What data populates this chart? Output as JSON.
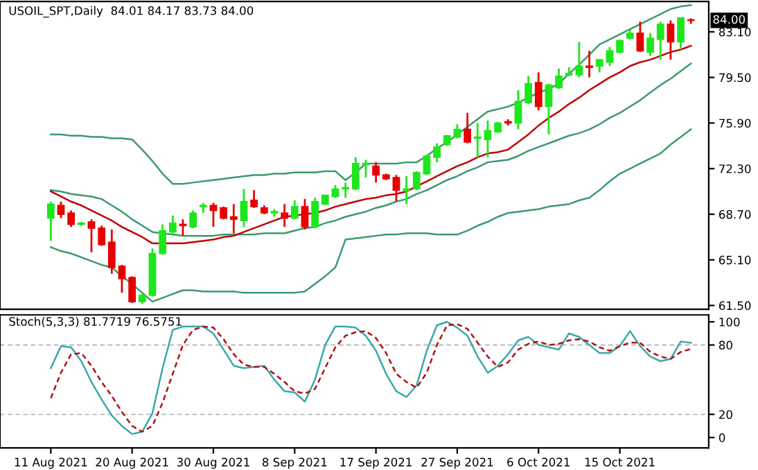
{
  "chart_data": [
    {
      "type": "candlestick",
      "title": "USOIL_SPT,Daily  84.01 84.17 83.73 84.00",
      "ohlc": [
        [
          68.4,
          69.7,
          66.6,
          69.5
        ],
        [
          69.4,
          69.7,
          68.4,
          68.7
        ],
        [
          68.8,
          69.0,
          67.7,
          67.9
        ],
        [
          67.9,
          68.1,
          67.8,
          68.0
        ],
        [
          68.1,
          68.3,
          65.7,
          67.6
        ],
        [
          67.6,
          67.8,
          66.2,
          66.3
        ],
        [
          66.5,
          67.5,
          64.0,
          64.5
        ],
        [
          64.6,
          64.7,
          62.5,
          63.6
        ],
        [
          63.7,
          63.8,
          61.7,
          61.8
        ],
        [
          61.8,
          62.4,
          61.6,
          62.3
        ],
        [
          62.3,
          66.0,
          62.2,
          65.6
        ],
        [
          65.6,
          67.9,
          65.5,
          67.4
        ],
        [
          67.3,
          68.6,
          67.2,
          68.0
        ],
        [
          67.9,
          68.3,
          67.0,
          67.8
        ],
        [
          67.7,
          69.0,
          67.6,
          68.8
        ],
        [
          69.3,
          69.6,
          68.8,
          69.4
        ],
        [
          69.4,
          69.6,
          67.7,
          69.0
        ],
        [
          69.2,
          69.3,
          68.3,
          68.4
        ],
        [
          68.5,
          69.5,
          67.2,
          68.3
        ],
        [
          68.2,
          70.7,
          67.7,
          69.7
        ],
        [
          69.8,
          70.6,
          69.2,
          69.3
        ],
        [
          69.2,
          69.4,
          68.7,
          68.8
        ],
        [
          68.8,
          69.1,
          68.5,
          68.9
        ],
        [
          68.8,
          69.5,
          67.7,
          68.4
        ],
        [
          68.4,
          69.8,
          68.3,
          69.3
        ],
        [
          69.3,
          69.9,
          67.5,
          67.7
        ],
        [
          67.7,
          70.0,
          67.6,
          69.7
        ],
        [
          69.5,
          70.2,
          69.4,
          70.2
        ],
        [
          70.1,
          71.0,
          70.0,
          70.7
        ],
        [
          70.7,
          71.2,
          70.0,
          70.8
        ],
        [
          70.7,
          73.2,
          70.6,
          72.7
        ],
        [
          72.6,
          73.0,
          71.6,
          72.7
        ],
        [
          72.5,
          72.8,
          71.2,
          71.8
        ],
        [
          71.8,
          71.9,
          71.4,
          71.5
        ],
        [
          71.6,
          71.8,
          69.7,
          70.6
        ],
        [
          70.6,
          71.7,
          69.5,
          70.7
        ],
        [
          70.7,
          72.1,
          70.6,
          72.0
        ],
        [
          71.9,
          73.4,
          71.8,
          73.3
        ],
        [
          73.2,
          74.3,
          72.8,
          74.0
        ],
        [
          74.2,
          74.9,
          74.1,
          74.9
        ],
        [
          74.8,
          75.8,
          74.7,
          75.4
        ],
        [
          75.4,
          76.7,
          74.3,
          74.4
        ],
        [
          74.7,
          75.9,
          73.2,
          74.8
        ],
        [
          74.6,
          76.1,
          73.2,
          75.3
        ],
        [
          75.2,
          76.0,
          75.1,
          75.9
        ],
        [
          76.0,
          76.2,
          75.7,
          75.9
        ],
        [
          75.9,
          78.5,
          75.4,
          77.6
        ],
        [
          77.5,
          79.6,
          77.4,
          79.0
        ],
        [
          79.1,
          79.9,
          76.9,
          77.2
        ],
        [
          77.2,
          79.0,
          75.0,
          78.9
        ],
        [
          78.7,
          80.2,
          78.6,
          79.6
        ],
        [
          79.7,
          80.3,
          79.6,
          79.8
        ],
        [
          79.7,
          82.3,
          79.5,
          80.4
        ],
        [
          80.4,
          81.6,
          79.5,
          80.3
        ],
        [
          80.4,
          80.9,
          79.9,
          80.9
        ],
        [
          80.7,
          81.9,
          80.4,
          81.6
        ],
        [
          81.5,
          82.5,
          81.4,
          82.4
        ],
        [
          82.6,
          83.3,
          82.5,
          83.0
        ],
        [
          83.0,
          83.9,
          81.5,
          81.6
        ],
        [
          81.5,
          83.0,
          81.2,
          82.6
        ],
        [
          82.5,
          83.9,
          80.9,
          83.7
        ],
        [
          83.7,
          84.0,
          80.9,
          82.3
        ],
        [
          82.3,
          84.2,
          81.7,
          84.2
        ],
        [
          84.01,
          84.17,
          83.73,
          84.0
        ]
      ],
      "colors": [
        "#1ee61e",
        "#e60000",
        "#e60000",
        "#1ee61e",
        "#e60000",
        "#e60000",
        "#e60000",
        "#e60000",
        "#e60000",
        "#1ee61e",
        "#1ee61e",
        "#1ee61e",
        "#1ee61e",
        "#e60000",
        "#1ee61e",
        "#1ee61e",
        "#e60000",
        "#e60000",
        "#e60000",
        "#1ee61e",
        "#e60000",
        "#e60000",
        "#1ee61e",
        "#e60000",
        "#1ee61e",
        "#e60000",
        "#1ee61e",
        "#1ee61e",
        "#1ee61e",
        "#1ee61e",
        "#1ee61e",
        "#1ee61e",
        "#e60000",
        "#e60000",
        "#e60000",
        "#1ee61e",
        "#1ee61e",
        "#1ee61e",
        "#1ee61e",
        "#1ee61e",
        "#1ee61e",
        "#e60000",
        "#1ee61e",
        "#1ee61e",
        "#1ee61e",
        "#e60000",
        "#1ee61e",
        "#1ee61e",
        "#e60000",
        "#1ee61e",
        "#1ee61e",
        "#1ee61e",
        "#1ee61e",
        "#e60000",
        "#1ee61e",
        "#1ee61e",
        "#1ee61e",
        "#1ee61e",
        "#e60000",
        "#1ee61e",
        "#1ee61e",
        "#e60000",
        "#1ee61e",
        "#e60000"
      ],
      "series": [
        {
          "type": "line",
          "color": "#3c9a6a",
          "values": [
            75.0,
            75.0,
            74.9,
            74.9,
            74.8,
            74.8,
            74.7,
            74.7,
            74.6,
            73.8,
            72.9,
            71.9,
            71.1,
            71.1,
            71.2,
            71.3,
            71.4,
            71.5,
            71.6,
            71.7,
            71.8,
            71.8,
            71.9,
            71.9,
            72.0,
            72.0,
            72.0,
            72.1,
            72.1,
            71.4,
            72.0,
            72.7,
            72.7,
            72.7,
            72.7,
            72.8,
            72.8,
            73.3,
            73.9,
            74.4,
            75.0,
            75.6,
            76.2,
            76.8,
            77.0,
            77.2,
            77.5,
            77.9,
            78.3,
            78.6,
            79.0,
            79.8,
            80.5,
            81.3,
            82.1,
            82.5,
            82.9,
            83.3,
            83.7,
            84.1,
            84.5,
            84.9,
            85.1,
            85.2
          ]
        },
        {
          "type": "line",
          "color": "#3c9a6a",
          "values": [
            70.6,
            70.5,
            70.3,
            70.2,
            70.1,
            69.9,
            69.4,
            68.9,
            68.3,
            67.8,
            67.3,
            67.2,
            67.1,
            67.0,
            67.0,
            67.0,
            67.0,
            67.1,
            67.1,
            67.1,
            67.1,
            67.2,
            67.2,
            67.2,
            67.4,
            67.6,
            67.7,
            68.0,
            68.2,
            68.5,
            68.7,
            68.9,
            69.2,
            69.4,
            69.7,
            69.9,
            70.3,
            70.6,
            71.0,
            71.4,
            71.7,
            72.1,
            72.4,
            72.8,
            72.9,
            73.0,
            73.3,
            73.7,
            74.0,
            74.3,
            74.6,
            74.9,
            75.1,
            75.4,
            75.8,
            76.3,
            76.7,
            77.2,
            77.7,
            78.3,
            78.9,
            79.4,
            80.0,
            80.6
          ]
        },
        {
          "type": "line",
          "color": "#3c9a6a",
          "values": [
            66.1,
            65.8,
            65.6,
            65.3,
            65.0,
            64.7,
            64.5,
            63.8,
            63.2,
            62.5,
            61.8,
            62.1,
            62.4,
            62.7,
            62.7,
            62.6,
            62.6,
            62.6,
            62.6,
            62.5,
            62.5,
            62.5,
            62.5,
            62.5,
            62.5,
            62.6,
            63.2,
            63.8,
            64.5,
            66.7,
            66.8,
            66.9,
            67.0,
            67.1,
            67.1,
            67.2,
            67.2,
            67.2,
            67.1,
            67.1,
            67.1,
            67.4,
            67.8,
            68.1,
            68.5,
            68.8,
            68.9,
            69.0,
            69.1,
            69.3,
            69.4,
            69.5,
            69.8,
            70.0,
            70.6,
            71.3,
            71.9,
            72.3,
            72.7,
            73.1,
            73.5,
            74.2,
            74.8,
            75.4
          ]
        },
        {
          "type": "line",
          "color": "#c00000",
          "values": [
            70.5,
            70.1,
            69.7,
            69.4,
            69.0,
            68.6,
            68.2,
            67.7,
            67.3,
            66.9,
            66.4,
            66.4,
            66.4,
            66.4,
            66.5,
            66.6,
            66.7,
            66.9,
            67.0,
            67.3,
            67.6,
            67.9,
            68.2,
            68.5,
            68.6,
            68.7,
            68.8,
            69.0,
            69.3,
            69.5,
            69.7,
            69.9,
            70.0,
            70.2,
            70.3,
            70.5,
            70.9,
            71.3,
            71.7,
            72.1,
            72.5,
            72.8,
            73.2,
            73.5,
            73.6,
            73.8,
            74.4,
            75.0,
            75.7,
            76.3,
            76.8,
            77.4,
            77.9,
            78.5,
            79.0,
            79.5,
            79.9,
            80.4,
            80.7,
            80.9,
            81.2,
            81.5,
            81.7,
            82.0
          ]
        }
      ],
      "annotations": [
        "84.00"
      ],
      "ylim": [
        61.2,
        85.5
      ],
      "yticks": [
        {
          "value": 61.5,
          "label": "61.50"
        },
        {
          "value": 65.1,
          "label": "65.10"
        },
        {
          "value": 68.7,
          "label": "68.70"
        },
        {
          "value": 72.3,
          "label": "72.30"
        },
        {
          "value": 75.9,
          "label": "75.90"
        },
        {
          "value": 79.5,
          "label": "79.50"
        },
        {
          "value": 83.1,
          "label": "83.10"
        }
      ],
      "tick_labels": "y"
    },
    {
      "type": "line",
      "title": "Stoch(5,3,3) 81.7719 76.5751",
      "categories": [
        "11 Aug 2021",
        null,
        null,
        null,
        null,
        null,
        null,
        null,
        "20 Aug 2021",
        null,
        null,
        null,
        null,
        null,
        null,
        null,
        "30 Aug 2021",
        null,
        null,
        null,
        null,
        null,
        null,
        null,
        "8 Sep 2021",
        null,
        null,
        null,
        null,
        null,
        null,
        null,
        "17 Sep 2021",
        null,
        null,
        null,
        null,
        null,
        null,
        null,
        "27 Sep 2021",
        null,
        null,
        null,
        null,
        null,
        null,
        null,
        "6 Oct 2021",
        null,
        null,
        null,
        null,
        null,
        null,
        null,
        "15 Oct 2021",
        null,
        null,
        null,
        null,
        null,
        null,
        null
      ],
      "series": [
        {
          "color": "#3aa8a8",
          "line_style": "solid",
          "values": [
            60,
            79,
            78,
            66,
            48,
            33,
            19,
            10,
            3,
            5,
            21,
            60,
            93,
            96,
            96,
            96,
            90,
            76,
            62,
            60,
            61,
            62,
            50,
            40,
            39,
            31,
            50,
            80,
            96,
            96,
            95,
            88,
            75,
            55,
            40,
            35,
            45,
            75,
            97,
            100,
            95,
            88,
            70,
            56,
            62,
            72,
            84,
            87,
            80,
            78,
            76,
            90,
            87,
            80,
            73,
            73,
            79,
            92,
            79,
            70,
            66,
            68,
            83,
            81.8
          ]
        },
        {
          "color": "#b01010",
          "line_style": "dashed",
          "values": [
            34,
            56,
            72,
            73,
            62,
            48,
            36,
            22,
            10,
            5,
            10,
            30,
            55,
            80,
            93,
            96,
            95,
            85,
            72,
            63,
            61,
            61,
            55,
            48,
            40,
            38,
            42,
            60,
            78,
            88,
            91,
            92,
            86,
            73,
            55,
            48,
            43,
            56,
            80,
            97,
            98,
            94,
            82,
            70,
            61,
            65,
            76,
            81,
            83,
            80,
            81,
            84,
            85,
            83,
            78,
            75,
            79,
            82,
            82,
            74,
            70,
            68,
            74,
            76.6
          ]
        }
      ],
      "ref_lines": [
        {
          "axis": "y",
          "value": 20,
          "color": "#c0c0c0",
          "line_style": "dashed"
        },
        {
          "axis": "y",
          "value": 80,
          "color": "#c0c0c0",
          "line_style": "dashed"
        }
      ],
      "ylim": [
        -9,
        106
      ],
      "yticks": [
        0,
        20,
        80,
        100
      ]
    }
  ]
}
